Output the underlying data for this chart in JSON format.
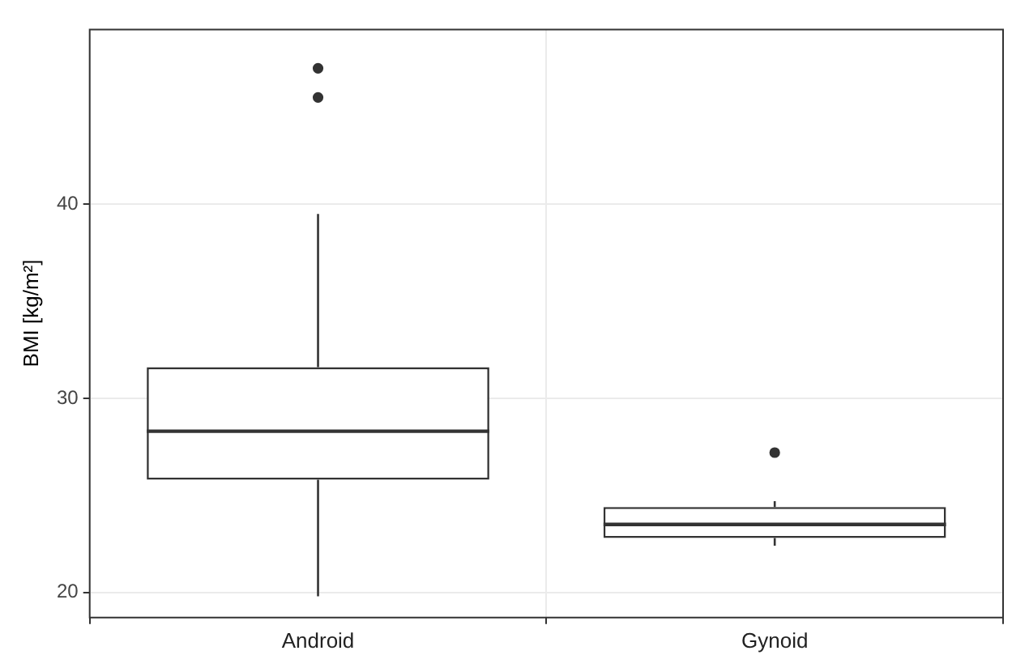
{
  "chart_data": {
    "type": "box",
    "ylabel": "BMI [kg/m²]",
    "categories": [
      "Android",
      "Gynoid"
    ],
    "boxes": [
      {
        "low": 19.8,
        "q1": 25.8,
        "median": 28.3,
        "q3": 31.6,
        "high": 39.5,
        "outliers": [
          45.5,
          47.0
        ]
      },
      {
        "low": 22.4,
        "q1": 22.8,
        "median": 23.5,
        "q3": 24.4,
        "high": 24.7,
        "outliers": [
          27.2
        ]
      }
    ],
    "ylim": [
      18.7,
      49
    ],
    "yticks": [
      20,
      30,
      40
    ],
    "grid": true,
    "legend": false
  }
}
